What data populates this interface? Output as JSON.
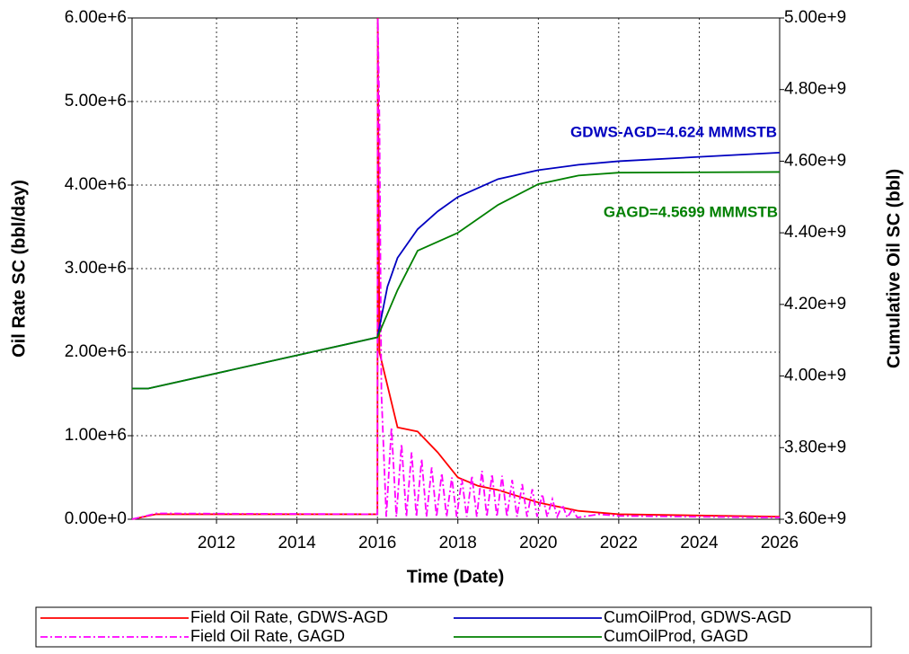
{
  "chart_data": {
    "type": "line",
    "xlabel": "Time (Date)",
    "ylabel": "Oil Rate SC (bbl/day)",
    "y2label": "Cumulative Oil SC (bbl)",
    "xlim": [
      2009.9,
      2026
    ],
    "xticks": [
      2012,
      2014,
      2016,
      2018,
      2020,
      2022,
      2024,
      2026
    ],
    "ylim": [
      0,
      6000000
    ],
    "yticks": [
      {
        "value": 0,
        "label": "0.00e+0"
      },
      {
        "value": 1000000,
        "label": "1.00e+6"
      },
      {
        "value": 2000000,
        "label": "2.00e+6"
      },
      {
        "value": 3000000,
        "label": "3.00e+6"
      },
      {
        "value": 4000000,
        "label": "4.00e+6"
      },
      {
        "value": 5000000,
        "label": "5.00e+6"
      },
      {
        "value": 6000000,
        "label": "6.00e+6"
      }
    ],
    "y2lim": [
      3600000000,
      5000000000
    ],
    "y2ticks": [
      {
        "value": 3600000000,
        "label": "3.60e+9"
      },
      {
        "value": 3800000000,
        "label": "3.80e+9"
      },
      {
        "value": 4000000000,
        "label": "4.00e+9"
      },
      {
        "value": 4200000000,
        "label": "4.20e+9"
      },
      {
        "value": 4400000000,
        "label": "4.40e+9"
      },
      {
        "value": 4600000000,
        "label": "4.60e+9"
      },
      {
        "value": 4800000000,
        "label": "4.80e+9"
      },
      {
        "value": 5000000000,
        "label": "5.00e+9"
      }
    ],
    "grid": true,
    "series": [
      {
        "name": "Field Oil Rate, GDWS-AGD",
        "color": "#ff0000",
        "axis": "y",
        "x": [
          2009.9,
          2010.5,
          2016,
          2016.01,
          2016.05,
          2016.3,
          2016.5,
          2017,
          2017.5,
          2018,
          2018.5,
          2019,
          2020,
          2021,
          2022,
          2026
        ],
        "values": [
          0,
          60000,
          60000,
          6000000,
          2000000,
          1500000,
          1100000,
          1050000,
          800000,
          500000,
          400000,
          350000,
          200000,
          100000,
          60000,
          30000
        ]
      },
      {
        "name": "Field Oil Rate, GAGD",
        "color": "#ff00ff",
        "axis": "y",
        "dash": "8,3,2,3",
        "x": [
          2009.9,
          2010.5,
          2016,
          2016.01,
          2016.05,
          2016.1,
          2016.22,
          2016.35,
          2016.47,
          2016.6,
          2016.72,
          2016.85,
          2016.97,
          2017.1,
          2017.22,
          2017.35,
          2017.47,
          2017.6,
          2017.72,
          2017.85,
          2017.97,
          2018.1,
          2018.22,
          2018.35,
          2018.47,
          2018.6,
          2018.72,
          2018.85,
          2018.97,
          2019.1,
          2019.22,
          2019.35,
          2019.47,
          2019.6,
          2019.72,
          2019.85,
          2019.97,
          2020.1,
          2020.22,
          2020.35,
          2020.47,
          2020.6,
          2020.72,
          2020.85,
          2020.97,
          2021.5,
          2022,
          2026
        ],
        "values": [
          0,
          70000,
          60000,
          6000000,
          4800000,
          1500000,
          30000,
          1100000,
          30000,
          900000,
          30000,
          800000,
          30000,
          720000,
          30000,
          620000,
          30000,
          550000,
          30000,
          500000,
          30000,
          480000,
          30000,
          520000,
          30000,
          580000,
          30000,
          540000,
          30000,
          520000,
          30000,
          470000,
          30000,
          420000,
          30000,
          360000,
          30000,
          300000,
          30000,
          240000,
          30000,
          170000,
          20000,
          120000,
          20000,
          60000,
          40000,
          20000
        ]
      },
      {
        "name": "CumOilProd, GDWS-AGD",
        "color": "#0000c0",
        "axis": "y2",
        "x": [
          2009.9,
          2010.3,
          2016,
          2016.25,
          2016.5,
          2017,
          2017.5,
          2018,
          2019,
          2020,
          2021,
          2022,
          2024,
          2026
        ],
        "values": [
          3965000000,
          3965000000,
          4108000000,
          4250000000,
          4330000000,
          4410000000,
          4460000000,
          4500000000,
          4550000000,
          4575000000,
          4590000000,
          4600000000,
          4612000000,
          4624000000
        ]
      },
      {
        "name": "CumOilProd, GAGD",
        "color": "#008000",
        "axis": "y2",
        "x": [
          2009.9,
          2010.3,
          2016,
          2016.5,
          2017,
          2018,
          2019,
          2020,
          2021,
          2022,
          2026
        ],
        "values": [
          3965000000,
          3965000000,
          4108000000,
          4240000000,
          4350000000,
          4400000000,
          4478000000,
          4536000000,
          4560000000,
          4568000000,
          4569900000
        ]
      }
    ],
    "annotations": [
      {
        "text": "GDWS-AGD=4.624 MMMSTB",
        "color": "#0000c0"
      },
      {
        "text": "GAGD=4.5699 MMMSTB",
        "color": "#008000"
      }
    ]
  }
}
